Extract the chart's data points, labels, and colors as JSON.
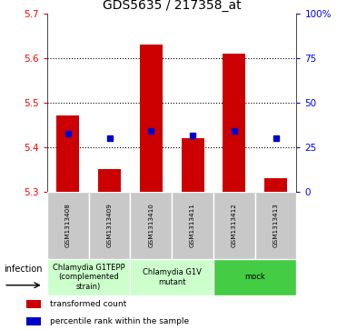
{
  "title": "GDS5635 / 217358_at",
  "samples": [
    "GSM1313408",
    "GSM1313409",
    "GSM1313410",
    "GSM1313411",
    "GSM1313412",
    "GSM1313413"
  ],
  "bar_tops": [
    5.47,
    5.35,
    5.63,
    5.42,
    5.61,
    5.33
  ],
  "bar_bottom": 5.3,
  "blue_values": [
    5.43,
    5.42,
    5.435,
    5.425,
    5.435,
    5.42
  ],
  "ylim_left": [
    5.3,
    5.7
  ],
  "ylim_right": [
    0,
    100
  ],
  "yticks_left": [
    5.3,
    5.4,
    5.5,
    5.6,
    5.7
  ],
  "yticks_right": [
    0,
    25,
    50,
    75,
    100
  ],
  "ytick_labels_right": [
    "0",
    "25",
    "50",
    "75",
    "100%"
  ],
  "bar_color": "#cc0000",
  "blue_color": "#0000cc",
  "groups": [
    {
      "label": "Chlamydia G1TEPP\n(complemented\nstrain)",
      "indices": [
        0,
        1
      ],
      "color": "#ccffcc"
    },
    {
      "label": "Chlamydia G1V\nmutant",
      "indices": [
        2,
        3
      ],
      "color": "#ccffcc"
    },
    {
      "label": "mock",
      "indices": [
        4,
        5
      ],
      "color": "#44cc44"
    }
  ],
  "infection_label": "infection",
  "legend_items": [
    {
      "color": "#cc0000",
      "label": "transformed count"
    },
    {
      "color": "#0000cc",
      "label": "percentile rank within the sample"
    }
  ],
  "title_fontsize": 10,
  "tick_fontsize": 7.5,
  "sample_fontsize": 5.2,
  "group_fontsize": 6.0,
  "legend_fontsize": 6.5
}
